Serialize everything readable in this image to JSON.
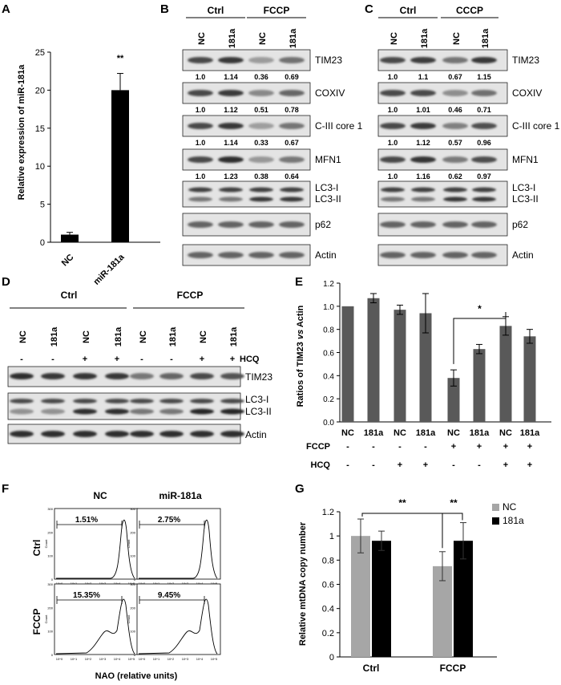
{
  "panel_letters": [
    "A",
    "B",
    "C",
    "D",
    "E",
    "F",
    "G"
  ],
  "panel_a": {
    "ylabel": "Relative expression of miR-181a",
    "yticks": [
      "0",
      "5",
      "10",
      "15",
      "20",
      "25"
    ],
    "sig": "**"
  },
  "panel_b": {
    "groups": [
      "Ctrl",
      "FCCP"
    ],
    "lanes": [
      "NC",
      "181a",
      "NC",
      "181a"
    ],
    "blots": [
      {
        "label": "TIM23",
        "quant": [
          "1.0",
          "1.14",
          "0.36",
          "0.69"
        ]
      },
      {
        "label": "COXIV",
        "quant": [
          "1.0",
          "1.12",
          "0.51",
          "0.78"
        ]
      },
      {
        "label": "C-III core 1",
        "quant": [
          "1.0",
          "1.14",
          "0.33",
          "0.67"
        ]
      },
      {
        "label": "MFN1",
        "quant": [
          "1.0",
          "1.23",
          "0.38",
          "0.64"
        ]
      },
      {
        "label": "LC3-I\nLC3-II",
        "quant": []
      },
      {
        "label": "p62",
        "quant": []
      },
      {
        "label": "Actin",
        "quant": []
      }
    ]
  },
  "panel_c": {
    "groups": [
      "Ctrl",
      "CCCP"
    ],
    "lanes": [
      "NC",
      "181a",
      "NC",
      "181a"
    ],
    "blots": [
      {
        "label": "TIM23",
        "quant": [
          "1.0",
          "1.1",
          "0.67",
          "1.15"
        ]
      },
      {
        "label": "COXIV",
        "quant": [
          "1.0",
          "1.01",
          "0.46",
          "0.71"
        ]
      },
      {
        "label": "C-III core 1",
        "quant": [
          "1.0",
          "1.12",
          "0.57",
          "0.96"
        ]
      },
      {
        "label": "MFN1",
        "quant": [
          "1.0",
          "1.16",
          "0.62",
          "0.97"
        ]
      },
      {
        "label": "LC3-I\nLC3-II",
        "quant": []
      },
      {
        "label": "p62",
        "quant": []
      },
      {
        "label": "Actin",
        "quant": []
      }
    ]
  },
  "panel_d": {
    "groups": [
      "Ctrl",
      "FCCP"
    ],
    "lanes": [
      "NC",
      "181a",
      "NC",
      "181a",
      "NC",
      "181a",
      "NC",
      "181a"
    ],
    "hcq_label": "HCQ",
    "hcq": [
      "-",
      "-",
      "+",
      "+",
      "-",
      "-",
      "+",
      "+"
    ],
    "blots": [
      "TIM23",
      "LC3-I\nLC3-II",
      "Actin"
    ]
  },
  "panel_f": {
    "cols": [
      "NC",
      "miR-181a"
    ],
    "rows": [
      "Ctrl",
      "FCCP"
    ],
    "pct": [
      "1.51%",
      "2.75%",
      "15.35%",
      "9.45%"
    ],
    "xlabel": "NAO (relative units)"
  },
  "panel_g": {
    "sig": [
      "**",
      "**"
    ]
  },
  "chart_data": [
    {
      "type": "bar",
      "panel": "A",
      "categories": [
        "NC",
        "miR-181a"
      ],
      "values": [
        1.0,
        20.0
      ],
      "errors": [
        0.3,
        2.2
      ],
      "ylabel": "Relative expression of miR-181a",
      "ylim": [
        0,
        25
      ]
    },
    {
      "type": "bar",
      "panel": "E",
      "categories": [
        "NC",
        "181a",
        "NC",
        "181a",
        "NC",
        "181a",
        "NC",
        "181a"
      ],
      "values": [
        1.0,
        1.07,
        0.97,
        0.94,
        0.38,
        0.63,
        0.83,
        0.74
      ],
      "errors": [
        0.0,
        0.04,
        0.04,
        0.17,
        0.07,
        0.04,
        0.08,
        0.06
      ],
      "ylabel": "Ratios of TIM23 vs Actin",
      "ylim": [
        0,
        1.2
      ],
      "yticks": [
        "0.0",
        "0.2",
        "0.4",
        "0.6",
        "0.8",
        "1.0",
        "1.2"
      ],
      "treatment_rows": [
        {
          "label": "FCCP",
          "values": [
            "-",
            "-",
            "-",
            "-",
            "+",
            "+",
            "+",
            "+"
          ]
        },
        {
          "label": "HCQ",
          "values": [
            "-",
            "-",
            "+",
            "+",
            "-",
            "-",
            "+",
            "+"
          ]
        }
      ],
      "sig": "*",
      "color": "#595959"
    },
    {
      "type": "bar",
      "panel": "G",
      "categories": [
        "Ctrl",
        "FCCP"
      ],
      "series": [
        {
          "name": "NC",
          "values": [
            1.0,
            0.75
          ],
          "errors": [
            0.14,
            0.12
          ],
          "color": "#a6a6a6"
        },
        {
          "name": "181a",
          "values": [
            0.96,
            0.96
          ],
          "errors": [
            0.08,
            0.15
          ],
          "color": "#000000"
        }
      ],
      "ylabel": "Relative mtDNA copy number",
      "ylim": [
        0,
        1.2
      ],
      "yticks": [
        "0",
        "0.2",
        "0.4",
        "0.6",
        "0.8",
        "1",
        "1.2"
      ],
      "legend": "top-right"
    }
  ]
}
